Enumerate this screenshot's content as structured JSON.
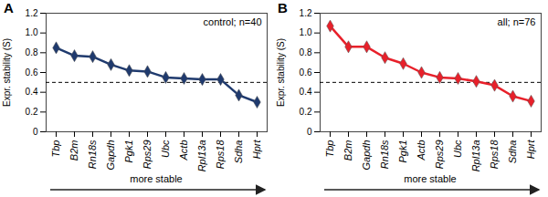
{
  "chart_data": [
    {
      "type": "line",
      "panel": "A",
      "title": "control; n=40",
      "ylabel": "Expr. stability (S)",
      "categories": [
        "Tbp",
        "B2m",
        "Rn18s",
        "Gapdh",
        "Pgk1",
        "Rps29",
        "Ubc",
        "Actb",
        "Rpl13a",
        "Rps18",
        "Sdha",
        "Hprt"
      ],
      "values": [
        0.85,
        0.77,
        0.76,
        0.68,
        0.62,
        0.61,
        0.55,
        0.54,
        0.53,
        0.53,
        0.37,
        0.3
      ],
      "color": "#1f3a6e",
      "marker": "diamond",
      "line_style": "solid",
      "threshold": 0.5,
      "annotation": "more stable",
      "ylim": [
        0,
        1.2
      ],
      "yticks": [
        0,
        0.2,
        0.4,
        0.6,
        0.8,
        {
          "value": 1,
          "label": "1.0"
        },
        1.2
      ]
    },
    {
      "type": "line",
      "panel": "B",
      "title": "all; n=76",
      "ylabel": "Expr. stability (S)",
      "categories": [
        "Tbp",
        "B2m",
        "Gapdh",
        "Rn18s",
        "Pgk1",
        "Actb",
        "Rps29",
        "Ubc",
        "Rpl13a",
        "Rps18",
        "Sdha",
        "Hprt"
      ],
      "values": [
        1.07,
        0.86,
        0.86,
        0.75,
        0.69,
        0.6,
        0.55,
        0.54,
        0.51,
        0.47,
        0.36,
        0.31
      ],
      "color": "#e8202a",
      "marker": "diamond",
      "line_style": "solid",
      "threshold": 0.5,
      "annotation": "more stable",
      "ylim": [
        0,
        1.2
      ],
      "yticks": [
        0,
        0.2,
        0.4,
        0.6,
        0.8,
        {
          "value": 1,
          "label": "1.0"
        },
        1.2
      ]
    }
  ]
}
